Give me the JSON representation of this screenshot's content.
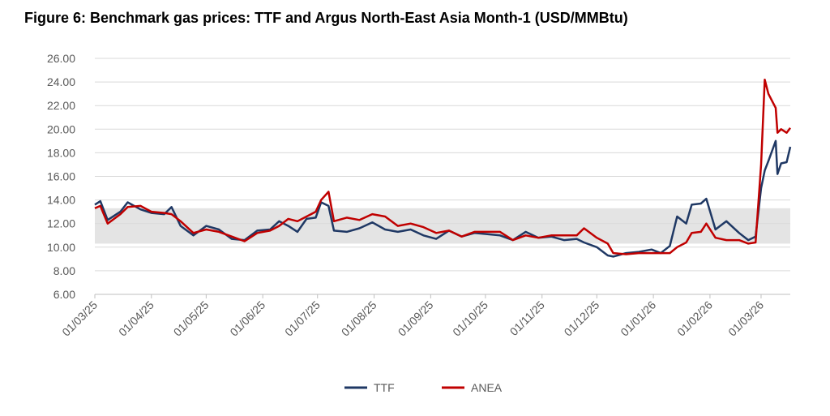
{
  "chart_data": {
    "type": "line",
    "title": "Figure 6: Benchmark gas prices: TTF and Argus North-East Asia Month-1 (USD/MMBtu)",
    "x": [
      "2025-03-01",
      "2025-03-04",
      "2025-03-08",
      "2025-03-15",
      "2025-03-19",
      "2025-03-26",
      "2025-04-01",
      "2025-04-08",
      "2025-04-12",
      "2025-04-17",
      "2025-04-24",
      "2025-05-01",
      "2025-05-08",
      "2025-05-15",
      "2025-05-22",
      "2025-05-29",
      "2025-06-05",
      "2025-06-10",
      "2025-06-15",
      "2025-06-20",
      "2025-06-25",
      "2025-06-30",
      "2025-07-03",
      "2025-07-07",
      "2025-07-10",
      "2025-07-17",
      "2025-07-24",
      "2025-07-31",
      "2025-08-07",
      "2025-08-14",
      "2025-08-21",
      "2025-08-28",
      "2025-09-04",
      "2025-09-11",
      "2025-09-18",
      "2025-09-25",
      "2025-10-02",
      "2025-10-09",
      "2025-10-16",
      "2025-10-23",
      "2025-10-30",
      "2025-11-06",
      "2025-11-13",
      "2025-11-20",
      "2025-11-24",
      "2025-12-01",
      "2025-12-07",
      "2025-12-10",
      "2025-12-17",
      "2025-12-24",
      "2025-12-31",
      "2026-01-05",
      "2026-01-10",
      "2026-01-14",
      "2026-01-19",
      "2026-01-22",
      "2026-01-27",
      "2026-01-30",
      "2026-02-04",
      "2026-02-10",
      "2026-02-17",
      "2026-02-22",
      "2026-02-26",
      "2026-03-01",
      "2026-03-03",
      "2026-03-05",
      "2026-03-09",
      "2026-03-10",
      "2026-03-12",
      "2026-03-15",
      "2026-03-17"
    ],
    "series": [
      {
        "name": "TTF",
        "color": "#1f3864",
        "values": [
          13.6,
          13.9,
          12.3,
          13.0,
          13.8,
          13.2,
          12.9,
          12.8,
          13.4,
          11.8,
          11.0,
          11.8,
          11.5,
          10.7,
          10.6,
          11.4,
          11.5,
          12.2,
          11.8,
          11.3,
          12.4,
          12.5,
          13.8,
          13.5,
          11.4,
          11.3,
          11.6,
          12.1,
          11.5,
          11.3,
          11.5,
          11.0,
          10.7,
          11.4,
          10.9,
          11.2,
          11.1,
          11.0,
          10.6,
          11.3,
          10.8,
          10.9,
          10.6,
          10.7,
          10.4,
          10.0,
          9.3,
          9.2,
          9.5,
          9.6,
          9.8,
          9.5,
          10.1,
          12.6,
          12.0,
          13.6,
          13.7,
          14.1,
          11.5,
          12.2,
          11.2,
          10.6,
          10.9,
          15.0,
          16.5,
          17.3,
          19.0,
          16.2,
          17.1,
          17.2,
          18.5
        ]
      },
      {
        "name": "ANEA",
        "color": "#c00000",
        "values": [
          13.3,
          13.5,
          12.0,
          12.8,
          13.4,
          13.5,
          13.0,
          12.9,
          12.8,
          12.2,
          11.2,
          11.5,
          11.3,
          10.9,
          10.5,
          11.2,
          11.4,
          11.8,
          12.4,
          12.2,
          12.6,
          13.0,
          14.0,
          14.7,
          12.2,
          12.5,
          12.3,
          12.8,
          12.6,
          11.8,
          12.0,
          11.7,
          11.2,
          11.4,
          10.9,
          11.3,
          11.3,
          11.3,
          10.6,
          11.0,
          10.8,
          11.0,
          11.0,
          11.0,
          11.6,
          10.8,
          10.3,
          9.5,
          9.4,
          9.5,
          9.5,
          9.5,
          9.5,
          10.0,
          10.4,
          11.2,
          11.3,
          12.0,
          10.8,
          10.6,
          10.6,
          10.3,
          10.4,
          17.0,
          24.2,
          23.0,
          21.8,
          19.7,
          20.0,
          19.7,
          20.1
        ]
      }
    ],
    "shaded_range": [
      10.3,
      13.3
    ],
    "xlim": [
      "2025-03-01",
      "2026-03-17"
    ],
    "xticks": [
      {
        "value": "2025-03-01",
        "label": "01/03/25"
      },
      {
        "value": "2025-04-01",
        "label": "01/04/25"
      },
      {
        "value": "2025-05-01",
        "label": "01/05/25"
      },
      {
        "value": "2025-06-01",
        "label": "01/06/25"
      },
      {
        "value": "2025-07-01",
        "label": "01/07/25"
      },
      {
        "value": "2025-08-01",
        "label": "01/08/25"
      },
      {
        "value": "2025-09-01",
        "label": "01/09/25"
      },
      {
        "value": "2025-10-01",
        "label": "01/10/25"
      },
      {
        "value": "2025-11-01",
        "label": "01/11/25"
      },
      {
        "value": "2025-12-01",
        "label": "01/12/25"
      },
      {
        "value": "2026-01-01",
        "label": "01/01/26"
      },
      {
        "value": "2026-02-01",
        "label": "01/02/26"
      },
      {
        "value": "2026-03-01",
        "label": "01/03/26"
      }
    ],
    "ylim": [
      6,
      26
    ],
    "yticks": [
      {
        "value": 6,
        "label": "6.00"
      },
      {
        "value": 8,
        "label": "8.00"
      },
      {
        "value": 10,
        "label": "10.00"
      },
      {
        "value": 12,
        "label": "12.00"
      },
      {
        "value": 14,
        "label": "14.00"
      },
      {
        "value": 16,
        "label": "16.00"
      },
      {
        "value": 18,
        "label": "18.00"
      },
      {
        "value": 20,
        "label": "20.00"
      },
      {
        "value": 22,
        "label": "22.00"
      },
      {
        "value": 24,
        "label": "24.00"
      },
      {
        "value": 26,
        "label": "26.00"
      }
    ],
    "grid": true,
    "legend": "bottom"
  }
}
